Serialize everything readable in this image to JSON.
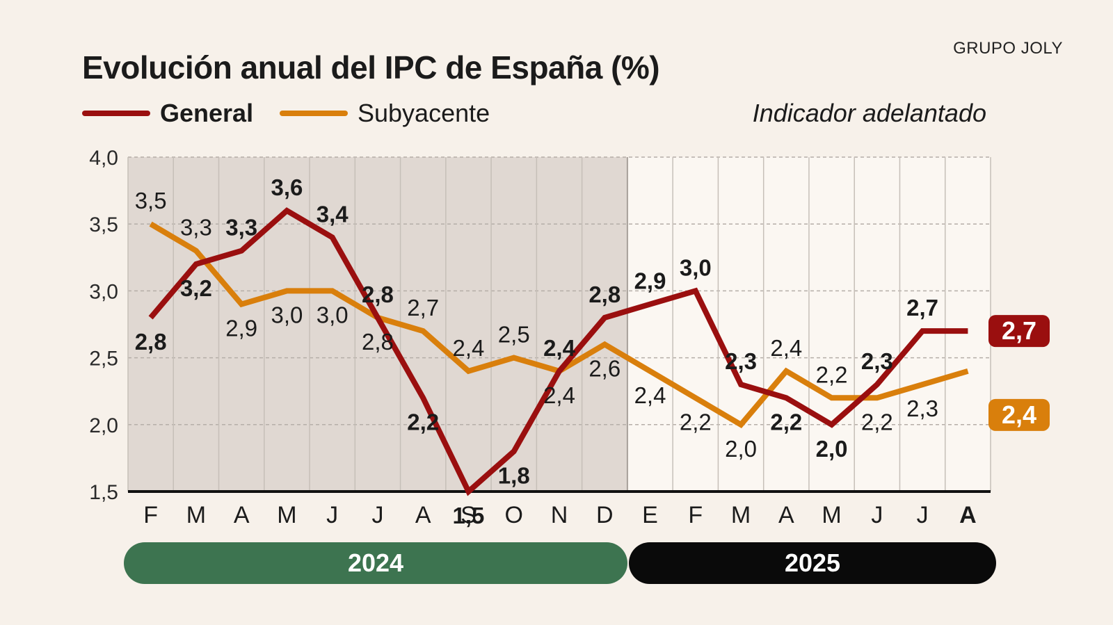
{
  "publisher": "GRUPO JOLY",
  "title": "Evolución anual del IPC de España (%)",
  "legend": {
    "general": "General",
    "subyacente": "Subyacente",
    "note": "Indicador adelantado"
  },
  "colors": {
    "general": "#9a0f0f",
    "subyacente": "#d97f0c",
    "shade": "#e0d8d2",
    "year2024": "#3d7450",
    "year2025": "#0a0a0a"
  },
  "years": [
    {
      "label": "2024"
    },
    {
      "label": "2025"
    }
  ],
  "chart_data": {
    "type": "line",
    "title": "Evolución anual del IPC de España (%)",
    "xlabel": "",
    "ylabel": "",
    "ylim": [
      1.5,
      4.0
    ],
    "yticks": [
      "1,5",
      "2,0",
      "2,5",
      "3,0",
      "3,5",
      "4,0"
    ],
    "grid": true,
    "categories": [
      "F",
      "M",
      "A",
      "M",
      "J",
      "J",
      "A",
      "S",
      "O",
      "N",
      "D",
      "E",
      "F",
      "M",
      "A",
      "M",
      "J",
      "J",
      "A"
    ],
    "shaded_categories": 11,
    "series": [
      {
        "name": "General",
        "values": [
          2.8,
          3.2,
          3.3,
          3.6,
          3.4,
          2.8,
          2.2,
          1.5,
          1.8,
          2.4,
          2.8,
          2.9,
          3.0,
          2.3,
          2.2,
          2.0,
          2.3,
          2.7,
          2.7
        ],
        "labels": [
          "2,8",
          "3,2",
          "3,3",
          "3,6",
          "3,4",
          "2,8",
          "2,2",
          "1,5",
          "1,8",
          "2,4",
          "2,8",
          "2,9",
          "3,0",
          "2,3",
          "2,2",
          "2,0",
          "2,3",
          "2,7",
          "2,7"
        ]
      },
      {
        "name": "Subyacente",
        "values": [
          3.5,
          3.3,
          2.9,
          3.0,
          3.0,
          2.8,
          2.7,
          2.4,
          2.5,
          2.4,
          2.6,
          2.4,
          2.2,
          2.0,
          2.4,
          2.2,
          2.2,
          2.3,
          2.4
        ],
        "labels": [
          "3,5",
          "3,3",
          "2,9",
          "3,0",
          "3,0",
          "2,8",
          "2,7",
          "2,4",
          "2,5",
          "2,4",
          "2,6",
          "2,4",
          "2,2",
          "2,0",
          "2,4",
          "2,2",
          "2,2",
          "2,3",
          "2,4"
        ]
      }
    ]
  }
}
